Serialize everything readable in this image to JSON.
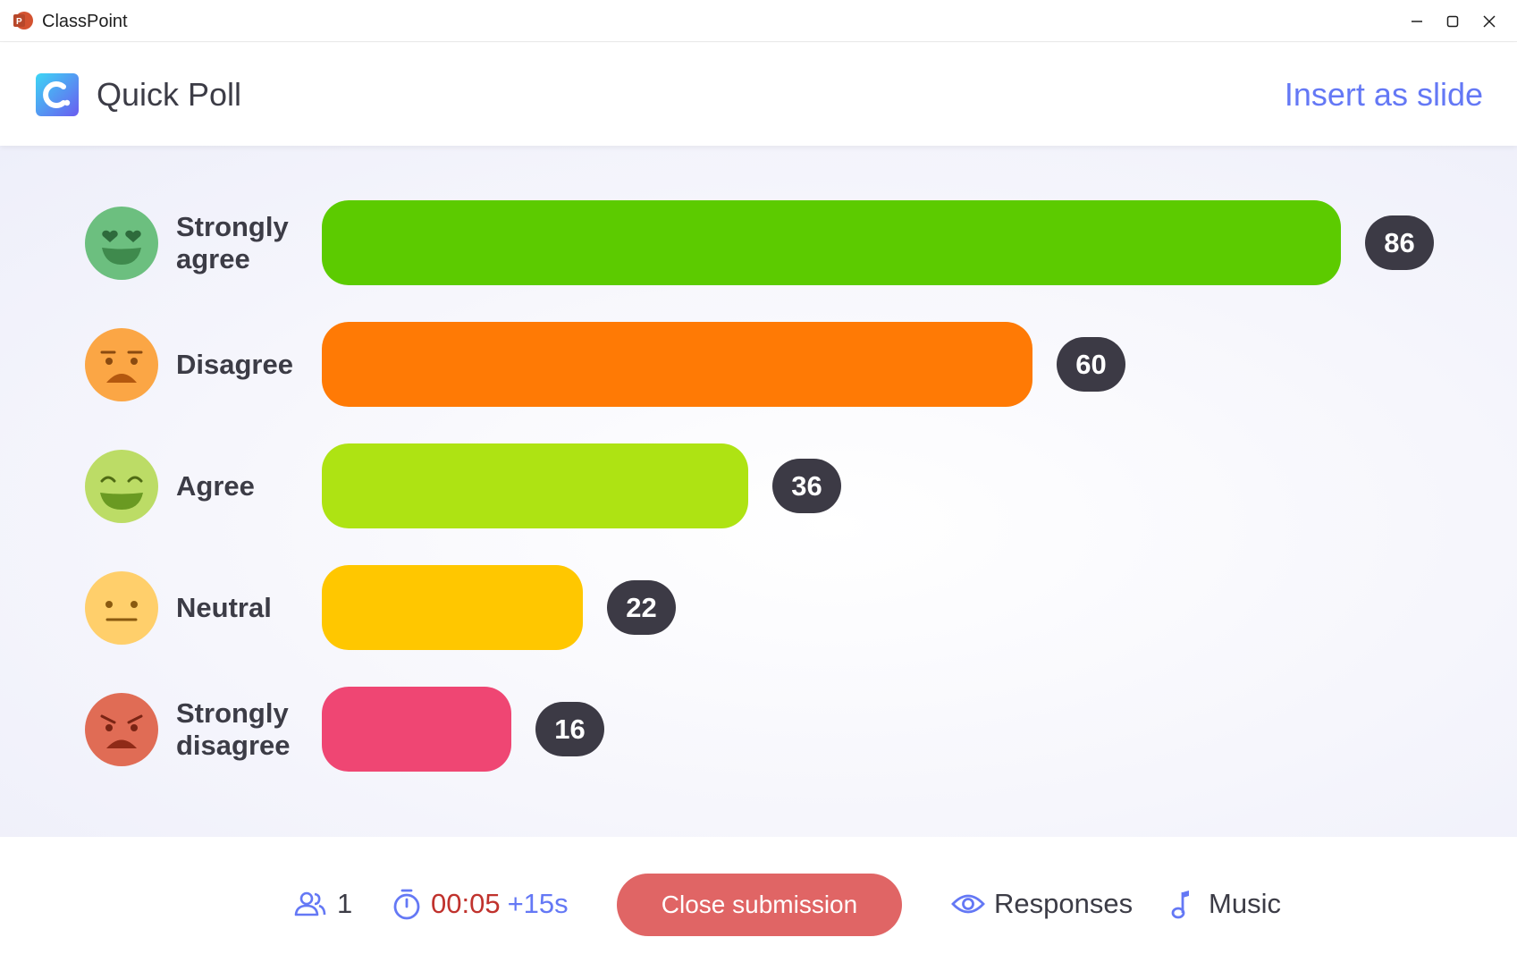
{
  "window": {
    "title": "ClassPoint",
    "app_icon": "powerpoint-icon",
    "controls": [
      "minimize-icon",
      "maximize-icon",
      "close-icon"
    ]
  },
  "header": {
    "logo_icon": "classpoint-logo-icon",
    "title": "Quick Poll",
    "insert_label": "Insert as slide"
  },
  "chart_data": {
    "type": "bar",
    "orientation": "horizontal",
    "categories": [
      "Strongly agree",
      "Disagree",
      "Agree",
      "Neutral",
      "Strongly disagree"
    ],
    "values": [
      86,
      60,
      36,
      22,
      16
    ],
    "colors": [
      "#5ccb00",
      "#ff7a05",
      "#aee313",
      "#ffc700",
      "#ef4673"
    ],
    "emoji_icons": [
      "heart-eyes-emoji-icon",
      "frowning-emoji-icon",
      "smiling-emoji-icon",
      "neutral-emoji-icon",
      "angry-emoji-icon"
    ],
    "max_value": 86
  },
  "rows": [
    {
      "label": "Strongly agree",
      "count": "86"
    },
    {
      "label": "Disagree",
      "count": "60"
    },
    {
      "label": "Agree",
      "count": "36"
    },
    {
      "label": "Neutral",
      "count": "22"
    },
    {
      "label": "Strongly disagree",
      "count": "16"
    }
  ],
  "footer": {
    "participants_icon": "participants-icon",
    "participants": "1",
    "timer_icon": "stopwatch-icon",
    "timer": "00:05",
    "add_time": "+15s",
    "close_label": "Close submission",
    "responses_icon": "eye-icon",
    "responses_label": "Responses",
    "music_icon": "music-note-icon",
    "music_label": "Music"
  },
  "colors": {
    "accent": "#6478f5",
    "timer": "#c0322d",
    "close_button": "#e06565",
    "badge": "#3c3a45"
  }
}
